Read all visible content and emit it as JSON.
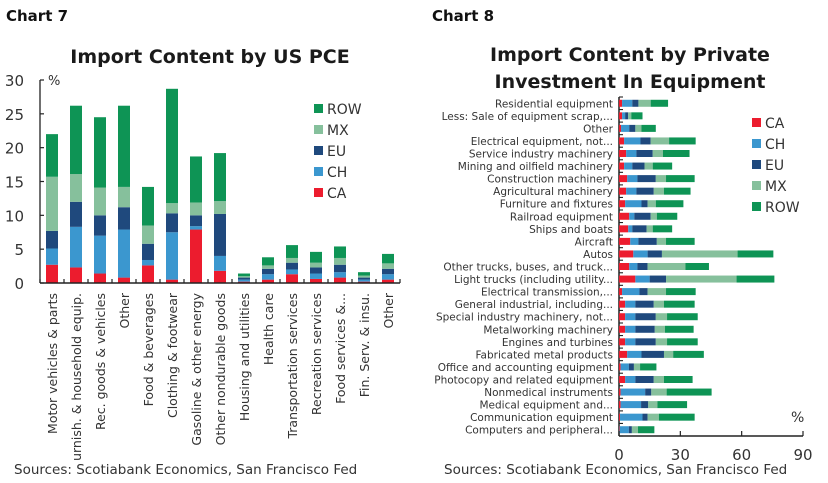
{
  "colors": {
    "CA": "#ec1c2e",
    "CH": "#3b97cf",
    "EU": "#1f497d",
    "MX": "#86c09c",
    "ROW": "#0e9455"
  },
  "chart_data": [
    {
      "type": "bar",
      "stacked": true,
      "orientation": "vertical",
      "label": "Chart 7",
      "title": "Import Content by US PCE",
      "ylabel": "%",
      "xlabel": "",
      "ylim": [
        0,
        30
      ],
      "yticks": [
        0,
        5,
        10,
        15,
        20,
        25,
        30
      ],
      "legend_position": "top-right",
      "legend_order": [
        "ROW",
        "MX",
        "EU",
        "CH",
        "CA"
      ],
      "categories": [
        "Motor vehicles & parts",
        "Furnish. & household equip.",
        "Rec. goods & vehicles",
        "Other",
        "Food & beverages",
        "Clothing & footwear",
        "Gasoline & other energy",
        "Other nondurable goods",
        "Housing and utilities",
        "Health care",
        "Transportation services",
        "Recreation services",
        "Food services &...",
        "Fin. Serv. & insu.",
        "Other"
      ],
      "series": [
        {
          "name": "CA",
          "values": [
            2.7,
            2.3,
            1.4,
            0.8,
            2.6,
            0.5,
            7.9,
            1.8,
            0.2,
            0.5,
            1.3,
            0.6,
            0.8,
            0.2,
            0.5
          ]
        },
        {
          "name": "CH",
          "values": [
            2.4,
            6.0,
            5.6,
            7.1,
            0.8,
            7.0,
            0.5,
            2.2,
            0.3,
            0.8,
            0.7,
            0.8,
            0.8,
            0.3,
            0.8
          ]
        },
        {
          "name": "EU",
          "values": [
            2.6,
            3.7,
            3.0,
            3.3,
            2.4,
            2.8,
            1.6,
            6.2,
            0.3,
            0.8,
            1.0,
            0.9,
            1.1,
            0.3,
            0.8
          ]
        },
        {
          "name": "MX",
          "values": [
            8.0,
            4.1,
            4.1,
            3.0,
            2.7,
            1.5,
            1.9,
            1.9,
            0.2,
            0.5,
            0.7,
            0.7,
            1.0,
            0.3,
            0.8
          ]
        },
        {
          "name": "ROW",
          "values": [
            6.3,
            10.1,
            10.4,
            12.0,
            5.7,
            16.9,
            6.8,
            7.1,
            0.4,
            1.2,
            1.9,
            1.6,
            1.7,
            0.5,
            1.4
          ]
        }
      ],
      "source": "Sources: Scotiabank Economics, San Francisco Fed"
    },
    {
      "type": "bar",
      "stacked": true,
      "orientation": "horizontal",
      "label": "Chart 8",
      "title": "Import Content by Private Investment In Equipment",
      "title_lines": [
        "Import Content by Private",
        "Investment In Equipment"
      ],
      "xlabel": "%",
      "ylabel": "",
      "xlim": [
        0,
        90
      ],
      "xticks": [
        0,
        30,
        60,
        90
      ],
      "legend_position": "right",
      "legend_order": [
        "CA",
        "CH",
        "EU",
        "MX",
        "ROW"
      ],
      "categories": [
        "Residential equipment",
        "Less: Sale of equipment scrap,...",
        "Other",
        "Electrical equipment, not...",
        "Service industry machinery",
        "Mining and oilfield machinery",
        "Construction machinery",
        "Agricultural machinery",
        "Furniture and fixtures",
        "Railroad equipment",
        "Ships and boats",
        "Aircraft",
        "Autos",
        "Other trucks, buses, and truck...",
        "Light trucks (including utility...",
        "Electrical transmission,...",
        "General industrial, including...",
        "Special industry machinery, not...",
        "Metalworking machinery",
        "Engines and turbines",
        "Fabricated metal products",
        "Office and accounting equipment",
        "Photocopy and related equipment",
        "Nonmedical instruments",
        "Medical equipment and...",
        "Communication equipment",
        "Computers and peripheral..."
      ],
      "series": [
        {
          "name": "CA",
          "values": [
            1.5,
            1.5,
            1.0,
            2.5,
            3.5,
            2.5,
            4.0,
            3.5,
            3.0,
            5.0,
            4.5,
            5.5,
            7.0,
            5.0,
            8.0,
            1.5,
            3.0,
            3.0,
            3.0,
            3.0,
            4.0,
            0.8,
            3.0,
            0.8,
            0.8,
            0.5,
            0.3
          ]
        },
        {
          "name": "CH",
          "values": [
            5.0,
            1.5,
            4.0,
            8.0,
            5.0,
            4.0,
            5.0,
            5.0,
            8.0,
            2.5,
            2.0,
            4.0,
            7.0,
            4.0,
            7.0,
            8.5,
            5.0,
            5.0,
            5.0,
            5.0,
            7.0,
            4.0,
            5.0,
            12.0,
            10.0,
            11.0,
            4.5
          ]
        },
        {
          "name": "EU",
          "values": [
            3.0,
            1.5,
            3.0,
            5.0,
            8.0,
            6.0,
            9.0,
            8.5,
            3.0,
            8.0,
            7.0,
            9.0,
            7.0,
            5.0,
            8.0,
            4.0,
            9.0,
            10.0,
            9.5,
            10.0,
            11.0,
            2.5,
            9.0,
            3.0,
            3.5,
            2.5,
            1.5
          ]
        },
        {
          "name": "MX",
          "values": [
            6.0,
            1.5,
            3.0,
            9.0,
            5.0,
            4.0,
            5.0,
            5.0,
            4.0,
            3.0,
            3.0,
            4.5,
            37.0,
            18.5,
            34.5,
            9.0,
            5.0,
            5.5,
            5.0,
            5.5,
            4.5,
            3.0,
            5.0,
            7.5,
            4.5,
            5.5,
            3.0
          ]
        },
        {
          "name": "ROW",
          "values": [
            8.5,
            5.5,
            7.0,
            13.0,
            13.0,
            9.5,
            14.0,
            13.0,
            13.5,
            10.0,
            9.5,
            14.0,
            17.5,
            11.5,
            18.5,
            14.5,
            15.0,
            15.0,
            14.0,
            15.0,
            15.0,
            8.0,
            14.0,
            22.0,
            14.5,
            17.5,
            8.0
          ]
        }
      ],
      "source": "Sources: Scotiabank Economics, San Francisco Fed"
    }
  ]
}
